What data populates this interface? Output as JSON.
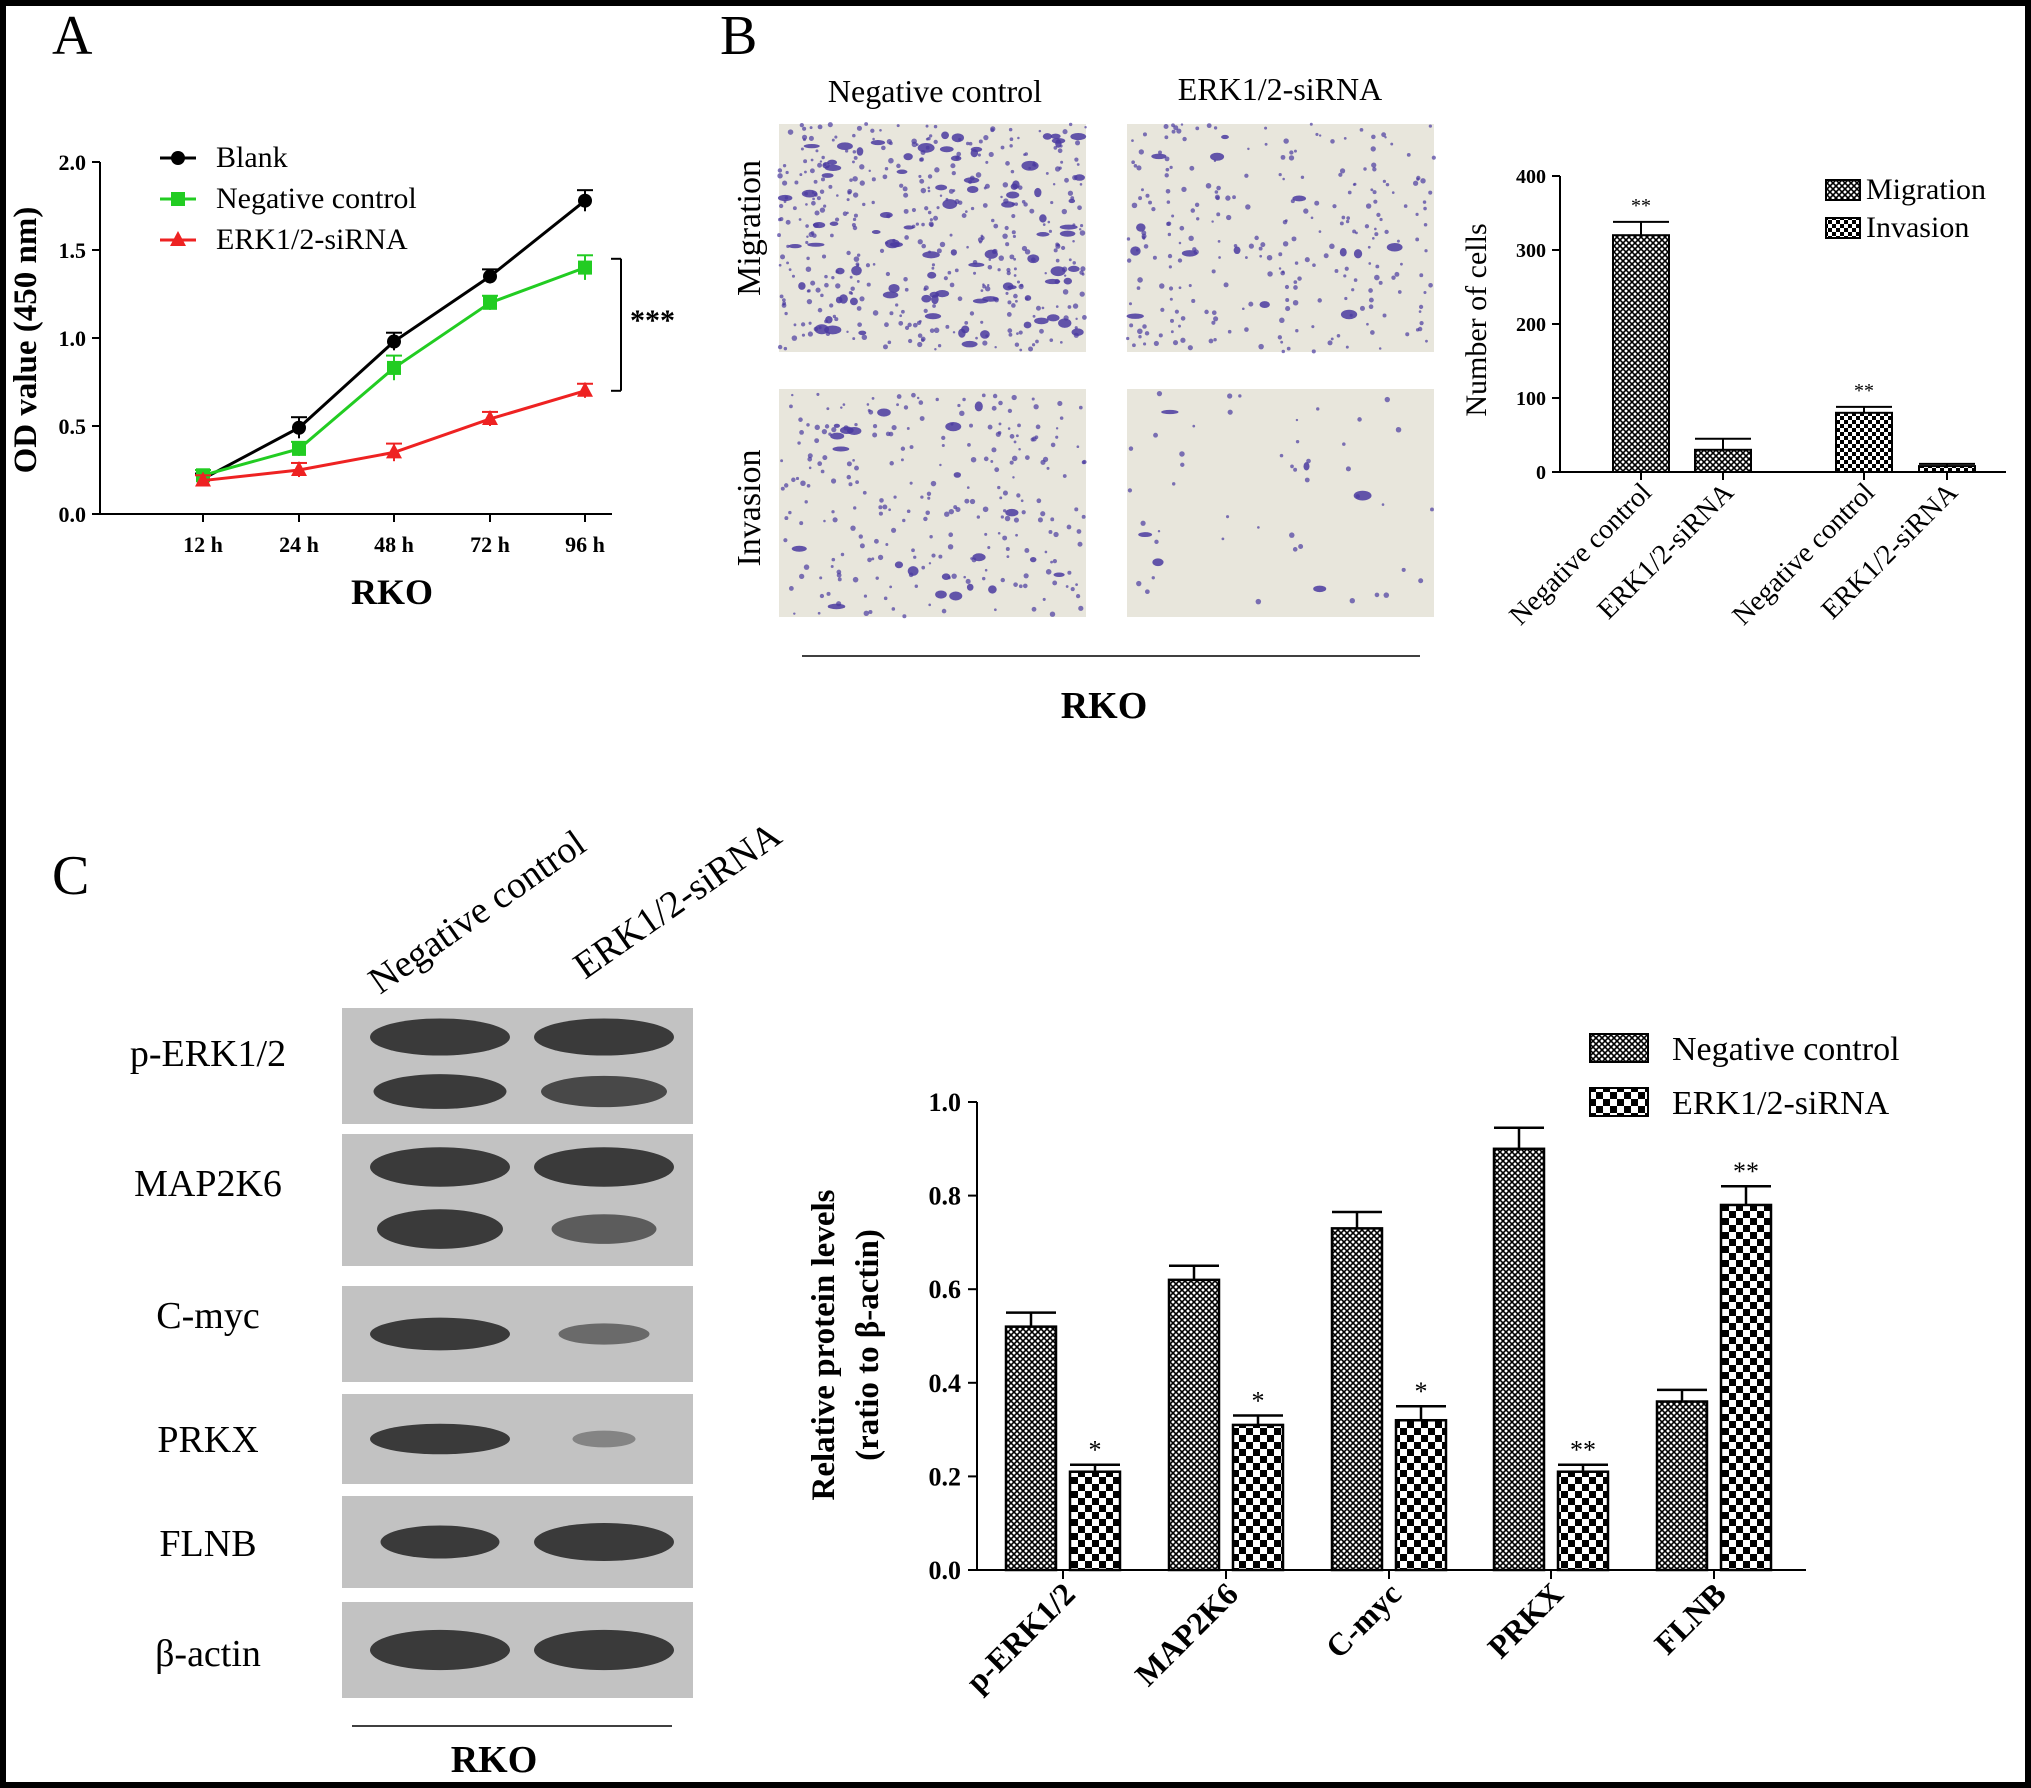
{
  "panels": {
    "a": {
      "letter": "A"
    },
    "b": {
      "letter": "B",
      "col_labels": [
        "Negative control",
        "ERK1/2-siRNA"
      ],
      "row_labels": [
        "Migration",
        "Invasion"
      ],
      "group_label": "RKO"
    },
    "c": {
      "letter": "C",
      "col_labels": [
        "Negative control",
        "ERK1/2-siRNA"
      ],
      "blot_rows": [
        "p-ERK1/2",
        "MAP2K6",
        "C-myc",
        "PRKX",
        "FLNB",
        "β-actin"
      ],
      "group_label": "RKO"
    }
  },
  "colors": {
    "blank": "#000000",
    "negative_control": "#22cc22",
    "sirna": "#ee2222",
    "stain": "#4a3aa0"
  },
  "chart_data": [
    {
      "type": "line",
      "xlabel": "RKO",
      "ylabel": "OD value (450 nm)",
      "x": [
        "12 h",
        "24 h",
        "48 h",
        "72 h",
        "96 h"
      ],
      "ylim": [
        0,
        2.0
      ],
      "yticks": [
        "0.0",
        "0.5",
        "1.0",
        "1.5",
        "2.0"
      ],
      "legend_position": "top-left",
      "annotation": "***",
      "series": [
        {
          "name": "Blank",
          "values": [
            0.2,
            0.49,
            0.98,
            1.35,
            1.78
          ],
          "errors": [
            0.03,
            0.06,
            0.05,
            0.04,
            0.06
          ]
        },
        {
          "name": "Negative control",
          "values": [
            0.22,
            0.37,
            0.83,
            1.2,
            1.4
          ],
          "errors": [
            0.03,
            0.04,
            0.07,
            0.04,
            0.07
          ]
        },
        {
          "name": "ERK1/2-siRNA",
          "values": [
            0.19,
            0.25,
            0.35,
            0.54,
            0.7
          ],
          "errors": [
            0.03,
            0.04,
            0.05,
            0.04,
            0.04
          ]
        }
      ]
    },
    {
      "type": "bar",
      "ylabel": "Number of cells",
      "ylim": [
        0,
        400
      ],
      "yticks": [
        "0",
        "100",
        "200",
        "300",
        "400"
      ],
      "legend_position": "top-right",
      "legend": [
        "Migration",
        "Invasion"
      ],
      "categories": [
        "Negative control",
        "ERK1/2-siRNA",
        "Negative control",
        "ERK1/2-siRNA"
      ],
      "groups": [
        "Migration",
        "Migration",
        "Invasion",
        "Invasion"
      ],
      "values": [
        320,
        30,
        80,
        8
      ],
      "errors": [
        18,
        15,
        8,
        3
      ],
      "significance": [
        "**",
        "",
        "**",
        ""
      ]
    },
    {
      "type": "bar",
      "ylabel_lines": [
        "Relative protein levels",
        "(ratio to β-actin)"
      ],
      "ylim": [
        0,
        1.0
      ],
      "yticks": [
        "0.0",
        "0.2",
        "0.4",
        "0.6",
        "0.8",
        "1.0"
      ],
      "legend_position": "top-right",
      "categories": [
        "p-ERK1/2",
        "MAP2K6",
        "C-myc",
        "PRKX",
        "FLNB"
      ],
      "series": [
        {
          "name": "Negative control",
          "values": [
            0.52,
            0.62,
            0.73,
            0.9,
            0.36
          ],
          "errors": [
            0.03,
            0.03,
            0.035,
            0.045,
            0.025
          ]
        },
        {
          "name": "ERK1/2-siRNA",
          "values": [
            0.21,
            0.31,
            0.32,
            0.21,
            0.78
          ],
          "errors": [
            0.015,
            0.02,
            0.03,
            0.015,
            0.04
          ]
        }
      ],
      "significance": [
        "*",
        "*",
        "*",
        "**",
        "**"
      ]
    }
  ]
}
